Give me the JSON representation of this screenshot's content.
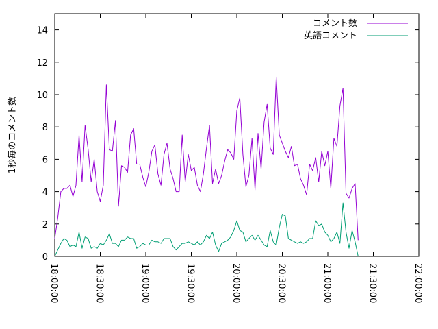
{
  "chart_data": {
    "type": "line",
    "title": "",
    "xlabel": "",
    "ylabel": "1秒毎のコメント数",
    "ylim": [
      0,
      15
    ],
    "yticks": [
      0,
      2,
      4,
      6,
      8,
      10,
      12,
      14
    ],
    "xlim": [
      "18:00:00",
      "22:00:00"
    ],
    "xticks": [
      "18:00:00",
      "18:30:00",
      "19:00:00",
      "19:30:00",
      "20:00:00",
      "20:30:00",
      "21:00:00",
      "21:30:00",
      "22:00:00"
    ],
    "xtick_rotation": "rotated 90° clockwise",
    "grid": false,
    "legend_position": "top-right",
    "x_start": "18:00:00",
    "x_step": "00:02:00",
    "series": [
      {
        "name": "コメント数",
        "color": "#9400d3",
        "values": [
          1.1,
          2.4,
          4.0,
          4.2,
          4.2,
          4.4,
          3.7,
          4.4,
          7.5,
          4.6,
          8.1,
          6.6,
          4.6,
          6.0,
          4.0,
          3.4,
          4.4,
          10.6,
          6.6,
          6.5,
          8.4,
          3.1,
          5.6,
          5.5,
          5.2,
          7.5,
          7.9,
          5.7,
          5.7,
          4.9,
          4.3,
          5.2,
          6.5,
          6.9,
          5.1,
          4.4,
          6.3,
          7.0,
          5.4,
          4.8,
          4.0,
          4.0,
          7.5,
          4.6,
          6.3,
          5.3,
          5.5,
          4.4,
          4.0,
          5.1,
          6.7,
          8.1,
          4.5,
          5.4,
          4.5,
          5.0,
          5.9,
          6.6,
          6.4,
          6.0,
          9.0,
          9.8,
          6.3,
          4.3,
          5.0,
          7.3,
          4.1,
          7.6,
          5.4,
          8.3,
          9.4,
          6.7,
          6.3,
          11.1,
          7.5,
          7.0,
          6.5,
          6.1,
          6.8,
          5.6,
          5.7,
          4.8,
          4.4,
          3.8,
          5.7,
          5.3,
          6.1,
          4.6,
          6.5,
          5.6,
          6.5,
          4.2,
          7.3,
          6.8,
          9.3,
          10.4,
          3.9,
          3.6,
          4.2,
          4.5,
          1.0
        ]
      },
      {
        "name": "英語コメント",
        "color": "#009e73",
        "values": [
          0.0,
          0.4,
          0.8,
          1.1,
          1.0,
          0.6,
          0.7,
          0.6,
          1.5,
          0.5,
          1.2,
          1.1,
          0.5,
          0.6,
          0.5,
          0.8,
          0.7,
          1.0,
          1.4,
          0.8,
          0.8,
          0.6,
          1.0,
          1.0,
          1.2,
          1.1,
          1.1,
          0.5,
          0.6,
          0.8,
          0.7,
          0.7,
          1.0,
          0.9,
          0.9,
          0.8,
          1.1,
          1.1,
          1.1,
          0.6,
          0.4,
          0.6,
          0.8,
          0.8,
          0.9,
          0.8,
          0.7,
          0.9,
          0.7,
          0.9,
          1.3,
          1.1,
          1.5,
          0.7,
          0.3,
          0.8,
          0.9,
          1.0,
          1.2,
          1.6,
          2.2,
          1.6,
          1.5,
          0.9,
          1.1,
          1.3,
          1.0,
          1.3,
          1.0,
          0.7,
          0.6,
          1.6,
          0.9,
          0.7,
          1.8,
          2.6,
          2.5,
          1.1,
          1.0,
          0.9,
          0.8,
          0.9,
          0.8,
          0.9,
          1.1,
          1.1,
          2.2,
          1.9,
          2.0,
          1.5,
          1.3,
          0.9,
          1.1,
          1.5,
          0.8,
          3.3,
          1.5,
          0.5,
          1.6,
          0.9,
          0.0
        ]
      }
    ]
  }
}
